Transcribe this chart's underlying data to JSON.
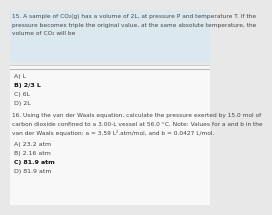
{
  "bg_color": "#e8e8e8",
  "header_bg": "#dce8f0",
  "white_bg": "#f8f8f8",
  "separator_color": "#bbbbbb",
  "q15_text_line1": "15. A sample of CO₂(g) has a volume of 2L, at pressure P and temperature T. If the",
  "q15_text_line2": "pressure becomes triple the original value, at the same absolute temperature, the",
  "q15_text_line3": "volume of CO₂ will be",
  "q15_options": [
    "A) L",
    "B) 2/3 L",
    "C) 6L",
    "D) 2L"
  ],
  "q15_bold": [
    1
  ],
  "q16_text_line1": "16. Using the van der Waals equation, calculate the pressure exerted by 15.0 mol of",
  "q16_text_line2": "carbon dioxide confined to a 3.00-L vessel at 56.0 °C. Note: Values for a and b in the",
  "q16_text_line3": "van der Waals equation: a = 3.59 L².atm/mol, and b = 0.0427 L/mol.",
  "q16_options": [
    "A) 23.2 atm",
    "B) 2.16 atm",
    "C) 81.9 atm",
    "D) 81.9 atm"
  ],
  "q16_bold": [
    2
  ],
  "text_color": "#444444",
  "bold_color": "#111111",
  "font_size": 4.2,
  "opt_font_size": 4.5,
  "fig_width": 2.0,
  "fig_height": 1.95
}
